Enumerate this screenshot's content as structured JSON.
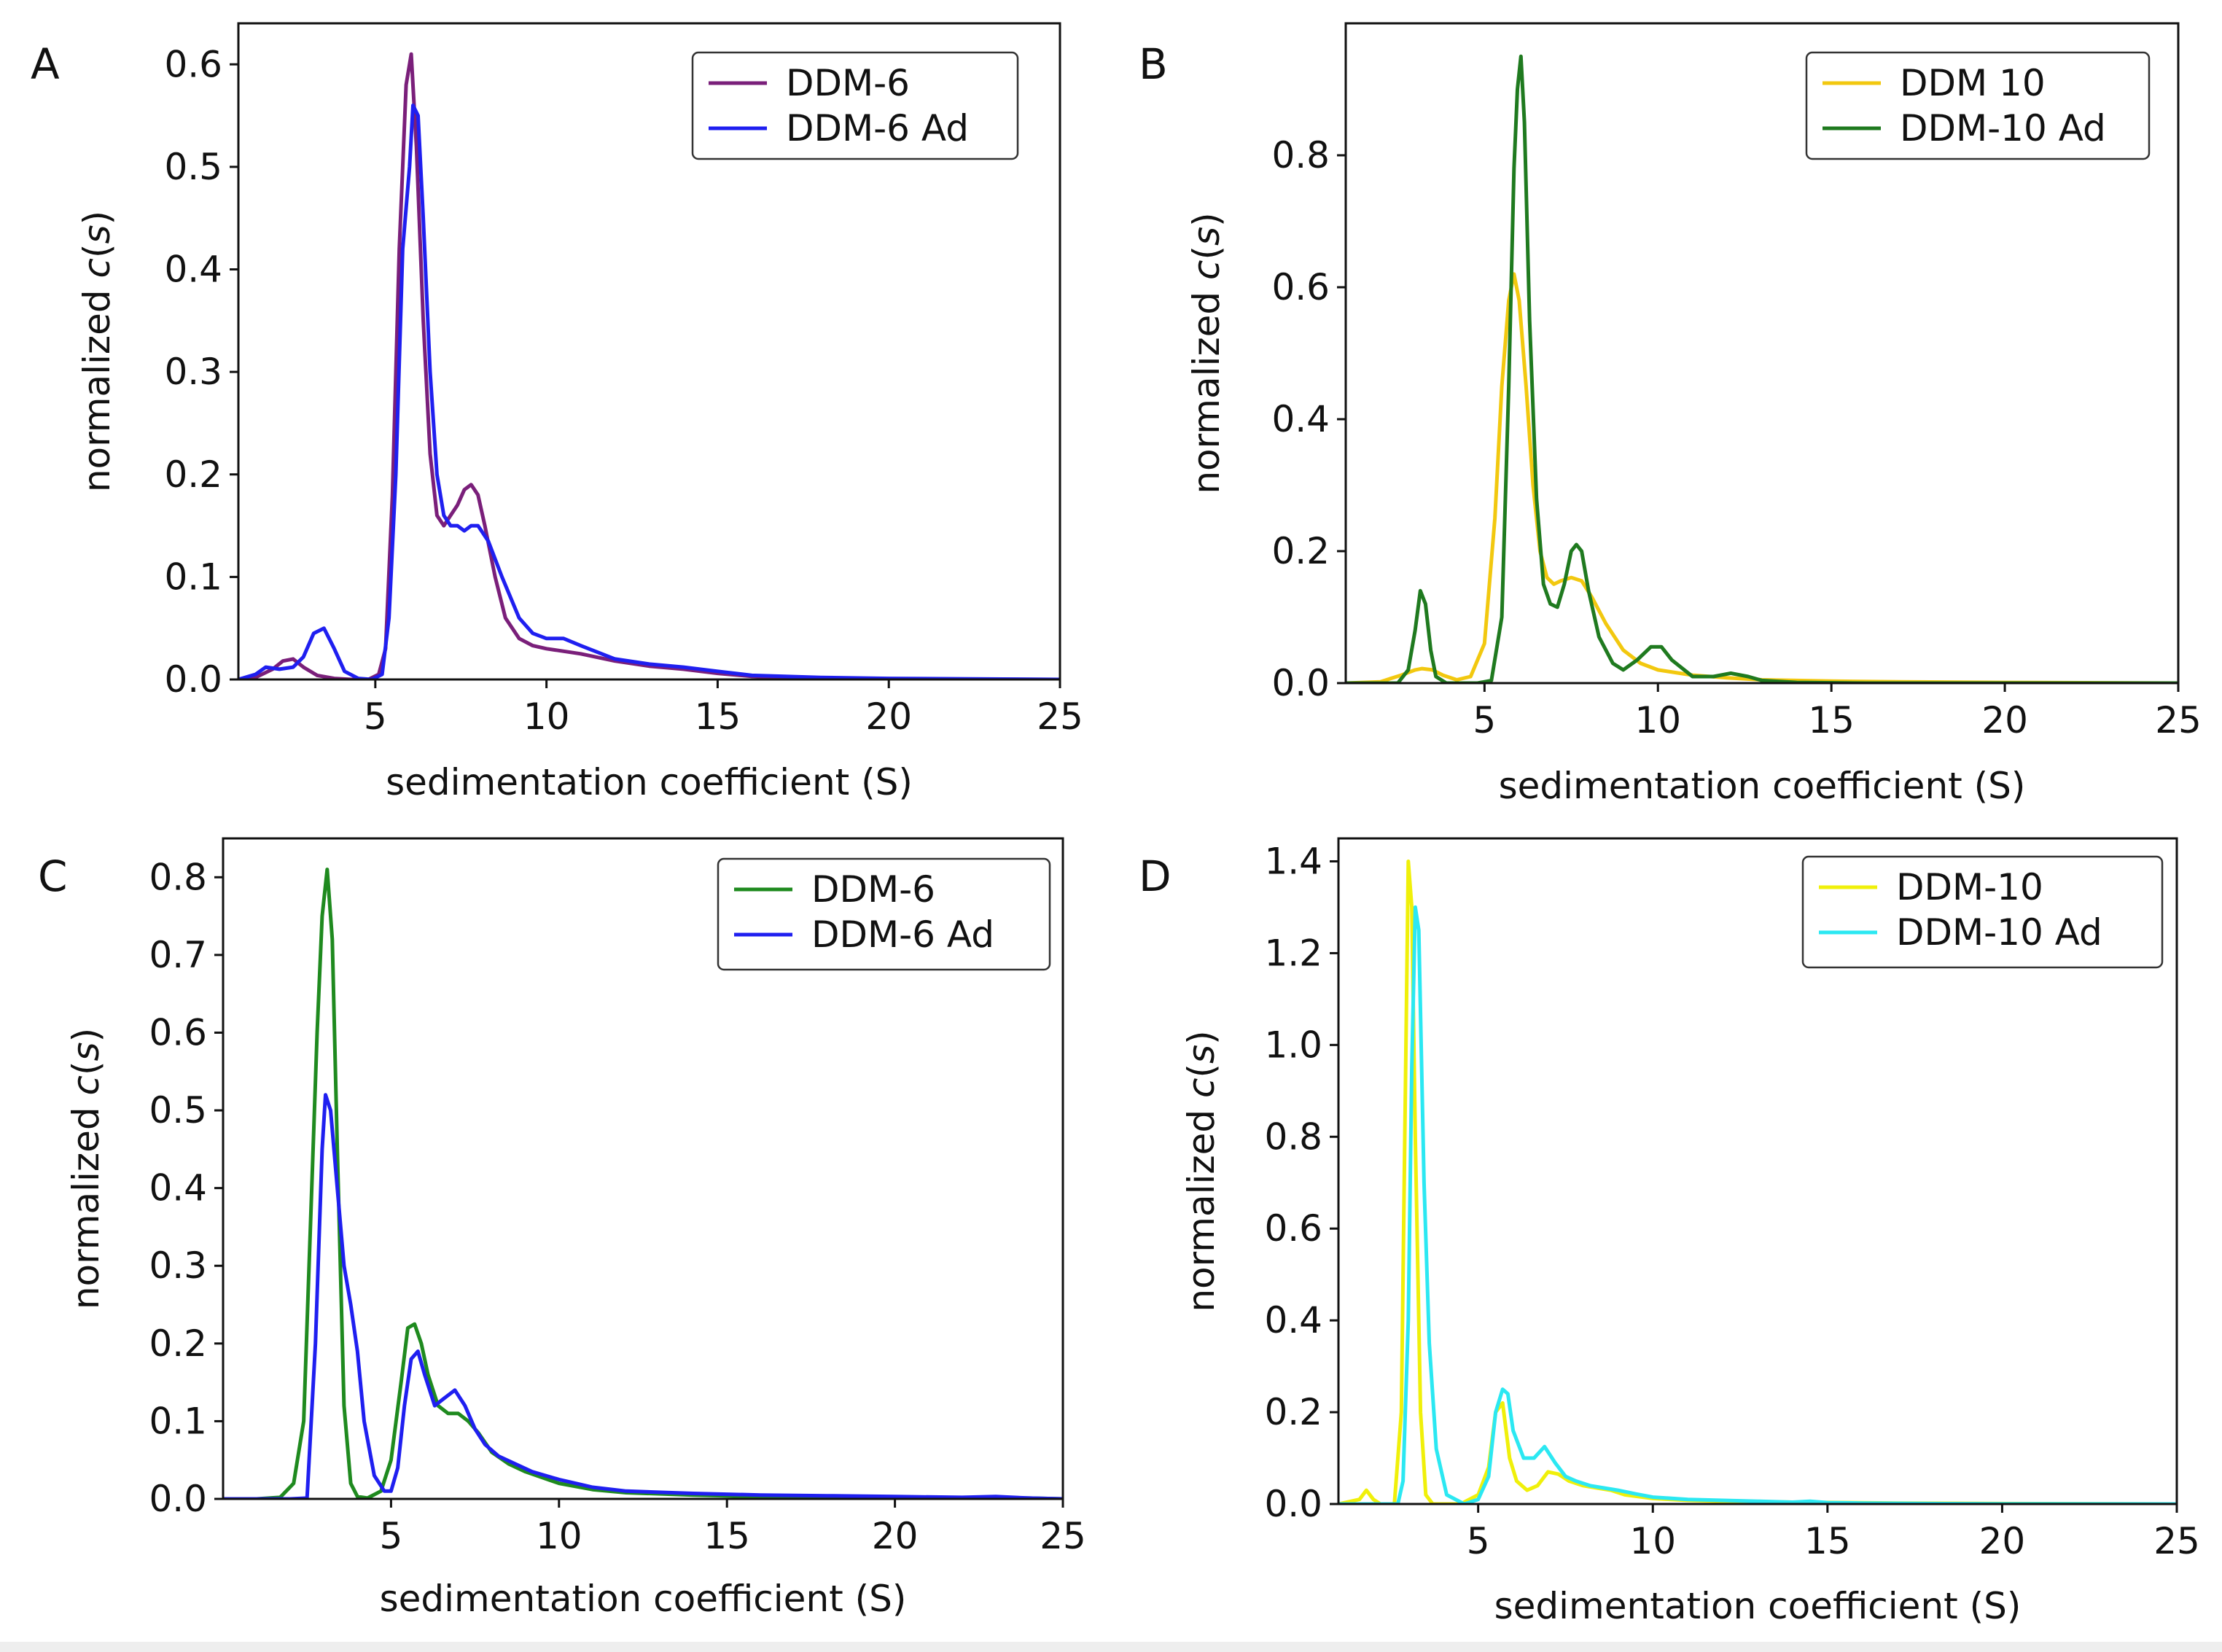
{
  "chart_data": [
    {
      "panel": "A",
      "type": "line",
      "xlabel": "sedimentation coefficient (S)",
      "ylabel_prefix": "normalized ",
      "ylabel_italic": "c",
      "ylabel_paren_open": "(",
      "ylabel_italic2": "s",
      "ylabel_paren_close": ")",
      "xlim": [
        1,
        25
      ],
      "ylim": [
        0,
        0.64
      ],
      "xticks": [
        5,
        10,
        15,
        20,
        25
      ],
      "yticks": [
        0.0,
        0.1,
        0.2,
        0.3,
        0.4,
        0.5,
        0.6
      ],
      "ytick_labels": [
        "0.0",
        "0.1",
        "0.2",
        "0.3",
        "0.4",
        "0.5",
        "0.6"
      ],
      "legend_position": "top-right",
      "series": [
        {
          "name": "DDM-6",
          "color": "#7a1f7a",
          "x": [
            1.0,
            1.5,
            2.0,
            2.3,
            2.6,
            2.9,
            3.3,
            3.8,
            4.3,
            4.8,
            5.1,
            5.3,
            5.5,
            5.7,
            5.9,
            6.05,
            6.2,
            6.4,
            6.6,
            6.8,
            7.0,
            7.2,
            7.4,
            7.6,
            7.8,
            8.0,
            8.2,
            8.5,
            8.8,
            9.2,
            9.6,
            10.0,
            11.0,
            12.0,
            13.0,
            14.0,
            15.0,
            16.0,
            18.0,
            20.0,
            22.0,
            25.0
          ],
          "y": [
            0,
            0.002,
            0.01,
            0.018,
            0.02,
            0.012,
            0.004,
            0.001,
            0,
            0,
            0.005,
            0.03,
            0.18,
            0.42,
            0.58,
            0.61,
            0.52,
            0.35,
            0.22,
            0.16,
            0.15,
            0.16,
            0.17,
            0.185,
            0.19,
            0.18,
            0.15,
            0.1,
            0.06,
            0.04,
            0.033,
            0.03,
            0.025,
            0.018,
            0.013,
            0.01,
            0.006,
            0.003,
            0.001,
            0.0005,
            0.0002,
            0
          ]
        },
        {
          "name": "DDM-6 Ad",
          "color": "#1f1ff0",
          "x": [
            1.0,
            1.5,
            1.8,
            2.2,
            2.6,
            2.9,
            3.2,
            3.5,
            3.8,
            4.1,
            4.5,
            4.9,
            5.2,
            5.4,
            5.6,
            5.8,
            6.0,
            6.1,
            6.25,
            6.4,
            6.6,
            6.8,
            7.0,
            7.2,
            7.4,
            7.6,
            7.8,
            8.0,
            8.3,
            8.7,
            9.2,
            9.6,
            10.0,
            10.5,
            11.0,
            12.0,
            13.0,
            14.0,
            15.0,
            16.0,
            18.0,
            20.0,
            25.0
          ],
          "y": [
            0,
            0.005,
            0.012,
            0.01,
            0.012,
            0.022,
            0.045,
            0.05,
            0.03,
            0.008,
            0.001,
            0,
            0.005,
            0.06,
            0.2,
            0.42,
            0.5,
            0.56,
            0.55,
            0.45,
            0.3,
            0.2,
            0.16,
            0.15,
            0.15,
            0.145,
            0.15,
            0.15,
            0.135,
            0.1,
            0.06,
            0.045,
            0.04,
            0.04,
            0.033,
            0.02,
            0.015,
            0.012,
            0.008,
            0.004,
            0.002,
            0.001,
            0
          ]
        }
      ]
    },
    {
      "panel": "B",
      "type": "line",
      "xlabel": "sedimentation coefficient (S)",
      "ylabel_prefix": "normalized ",
      "ylabel_italic": "c",
      "ylabel_paren_open": "(",
      "ylabel_italic2": "s",
      "ylabel_paren_close": ")",
      "xlim": [
        1,
        25
      ],
      "ylim": [
        0,
        1.0
      ],
      "xticks": [
        5,
        10,
        15,
        20,
        25
      ],
      "yticks": [
        0.0,
        0.2,
        0.4,
        0.6,
        0.8
      ],
      "ytick_labels": [
        "0.0",
        "0.2",
        "0.4",
        "0.6",
        "0.8"
      ],
      "legend_position": "top-right",
      "series": [
        {
          "name": "DDM 10",
          "color": "#f2c80f",
          "x": [
            1.0,
            2.0,
            2.6,
            3.0,
            3.2,
            3.5,
            3.8,
            4.2,
            4.6,
            5.0,
            5.3,
            5.5,
            5.7,
            5.85,
            6.0,
            6.2,
            6.4,
            6.6,
            6.8,
            7.0,
            7.2,
            7.5,
            7.8,
            8.1,
            8.5,
            9.0,
            9.5,
            10.0,
            11.0,
            12.0,
            13.0,
            15.0,
            17.0,
            20.0,
            25.0
          ],
          "y": [
            0,
            0.002,
            0.012,
            0.02,
            0.022,
            0.02,
            0.012,
            0.005,
            0.01,
            0.06,
            0.25,
            0.45,
            0.58,
            0.62,
            0.58,
            0.45,
            0.3,
            0.2,
            0.16,
            0.15,
            0.155,
            0.16,
            0.155,
            0.13,
            0.09,
            0.05,
            0.03,
            0.02,
            0.012,
            0.008,
            0.005,
            0.003,
            0.002,
            0.001,
            0
          ]
        },
        {
          "name": "DDM-10 Ad",
          "color": "#1f7a1f",
          "x": [
            1.0,
            2.5,
            2.8,
            3.0,
            3.15,
            3.3,
            3.45,
            3.6,
            3.9,
            4.3,
            4.8,
            5.2,
            5.5,
            5.7,
            5.85,
            5.95,
            6.05,
            6.15,
            6.3,
            6.5,
            6.7,
            6.9,
            7.1,
            7.3,
            7.5,
            7.65,
            7.8,
            8.0,
            8.3,
            8.7,
            9.0,
            9.4,
            9.8,
            10.1,
            10.4,
            11.0,
            11.6,
            12.1,
            12.6,
            13.0,
            14.0,
            16.0,
            20.0,
            25.0
          ],
          "y": [
            0,
            0,
            0.02,
            0.08,
            0.14,
            0.12,
            0.05,
            0.01,
            0,
            0,
            0,
            0.004,
            0.1,
            0.45,
            0.78,
            0.9,
            0.95,
            0.85,
            0.55,
            0.28,
            0.15,
            0.12,
            0.115,
            0.15,
            0.2,
            0.21,
            0.2,
            0.14,
            0.07,
            0.03,
            0.02,
            0.035,
            0.055,
            0.055,
            0.035,
            0.01,
            0.01,
            0.015,
            0.01,
            0.004,
            0.001,
            0,
            0,
            0
          ]
        }
      ]
    },
    {
      "panel": "C",
      "type": "line",
      "xlabel": "sedimentation coefficient (S)",
      "ylabel_prefix": "normalized ",
      "ylabel_italic": "c",
      "ylabel_paren_open": "(",
      "ylabel_italic2": "s",
      "ylabel_paren_close": ")",
      "xlim": [
        0,
        25
      ],
      "ylim": [
        0,
        0.85
      ],
      "xticks": [
        5,
        10,
        15,
        20,
        25
      ],
      "yticks": [
        0.0,
        0.1,
        0.2,
        0.3,
        0.4,
        0.5,
        0.6,
        0.7,
        0.8
      ],
      "ytick_labels": [
        "0.0",
        "0.1",
        "0.2",
        "0.3",
        "0.4",
        "0.5",
        "0.6",
        "0.7",
        "0.8"
      ],
      "legend_position": "top-right",
      "series": [
        {
          "name": "DDM-6",
          "color": "#1f8a1f",
          "x": [
            0.0,
            1.0,
            1.7,
            2.1,
            2.4,
            2.6,
            2.8,
            2.95,
            3.1,
            3.25,
            3.4,
            3.6,
            3.8,
            4.0,
            4.3,
            4.7,
            5.0,
            5.3,
            5.5,
            5.7,
            5.9,
            6.1,
            6.4,
            6.7,
            7.0,
            7.3,
            7.6,
            8.0,
            8.5,
            9.0,
            10.0,
            11.0,
            12.0,
            14.0,
            16.0,
            18.0,
            20.0,
            22.0,
            24.0,
            25.0
          ],
          "y": [
            0,
            0,
            0.002,
            0.02,
            0.1,
            0.35,
            0.6,
            0.75,
            0.81,
            0.72,
            0.45,
            0.12,
            0.02,
            0.003,
            0.001,
            0.01,
            0.05,
            0.15,
            0.22,
            0.225,
            0.2,
            0.16,
            0.12,
            0.11,
            0.11,
            0.1,
            0.085,
            0.06,
            0.045,
            0.035,
            0.02,
            0.012,
            0.008,
            0.005,
            0.003,
            0.002,
            0.002,
            0.001,
            0.001,
            0
          ]
        },
        {
          "name": "DDM-6 Ad",
          "color": "#1f1ff0",
          "x": [
            0.0,
            2.0,
            2.5,
            2.75,
            2.95,
            3.05,
            3.2,
            3.4,
            3.6,
            3.8,
            4.0,
            4.2,
            4.5,
            4.8,
            5.0,
            5.2,
            5.4,
            5.6,
            5.8,
            6.0,
            6.3,
            6.6,
            6.9,
            7.2,
            7.5,
            7.8,
            8.2,
            8.7,
            9.2,
            10.0,
            11.0,
            12.0,
            14.0,
            16.0,
            18.0,
            20.0,
            22.0,
            23.0,
            24.0,
            25.0
          ],
          "y": [
            0,
            0,
            0.001,
            0.2,
            0.45,
            0.52,
            0.5,
            0.4,
            0.3,
            0.25,
            0.19,
            0.1,
            0.03,
            0.01,
            0.01,
            0.04,
            0.12,
            0.18,
            0.19,
            0.16,
            0.12,
            0.13,
            0.14,
            0.12,
            0.09,
            0.07,
            0.055,
            0.045,
            0.035,
            0.025,
            0.015,
            0.01,
            0.007,
            0.005,
            0.004,
            0.003,
            0.002,
            0.003,
            0.001,
            0
          ]
        }
      ]
    },
    {
      "panel": "D",
      "type": "line",
      "xlabel": "sedimentation coefficient (S)",
      "ylabel_prefix": "normalized ",
      "ylabel_italic": "c",
      "ylabel_paren_open": "(",
      "ylabel_italic2": "s",
      "ylabel_paren_close": ")",
      "xlim": [
        1,
        25
      ],
      "ylim": [
        0,
        1.45
      ],
      "xticks": [
        5,
        10,
        15,
        20,
        25
      ],
      "yticks": [
        0.0,
        0.2,
        0.4,
        0.6,
        0.8,
        1.0,
        1.2,
        1.4
      ],
      "ytick_labels": [
        "0.0",
        "0.2",
        "0.4",
        "0.6",
        "0.8",
        "1.0",
        "1.2",
        "1.4"
      ],
      "legend_position": "top-right",
      "series": [
        {
          "name": "DDM-10",
          "color": "#f0f00a",
          "x": [
            1.0,
            1.6,
            1.8,
            2.0,
            2.2,
            2.6,
            2.8,
            2.9,
            3.0,
            3.1,
            3.2,
            3.35,
            3.5,
            3.7,
            4.0,
            4.5,
            5.0,
            5.3,
            5.5,
            5.7,
            5.9,
            6.1,
            6.4,
            6.7,
            7.0,
            7.3,
            7.6,
            8.0,
            8.4,
            8.8,
            9.2,
            10.0,
            11.0,
            12.0,
            14.0,
            17.0,
            20.0,
            25.0
          ],
          "y": [
            0,
            0.01,
            0.03,
            0.01,
            0,
            0,
            0.2,
            0.8,
            1.4,
            1.3,
            0.8,
            0.2,
            0.02,
            0,
            0,
            0,
            0.02,
            0.08,
            0.2,
            0.22,
            0.1,
            0.05,
            0.03,
            0.04,
            0.07,
            0.065,
            0.05,
            0.04,
            0.035,
            0.03,
            0.02,
            0.012,
            0.008,
            0.006,
            0.004,
            0.002,
            0.001,
            0
          ]
        },
        {
          "name": "DDM-10 Ad",
          "color": "#2be8f2",
          "x": [
            1.0,
            2.7,
            2.85,
            3.0,
            3.1,
            3.2,
            3.3,
            3.45,
            3.6,
            3.8,
            4.1,
            4.6,
            5.0,
            5.3,
            5.5,
            5.7,
            5.85,
            6.0,
            6.3,
            6.6,
            6.9,
            7.2,
            7.5,
            7.8,
            8.2,
            8.6,
            9.0,
            9.5,
            10.0,
            11.0,
            12.0,
            13.0,
            14.0,
            14.5,
            15.0,
            16.0,
            18.0,
            20.0,
            25.0
          ],
          "y": [
            0,
            0,
            0.05,
            0.4,
            0.95,
            1.3,
            1.25,
            0.7,
            0.35,
            0.12,
            0.02,
            0,
            0.01,
            0.06,
            0.2,
            0.25,
            0.24,
            0.16,
            0.1,
            0.1,
            0.125,
            0.09,
            0.06,
            0.05,
            0.04,
            0.035,
            0.03,
            0.022,
            0.015,
            0.01,
            0.008,
            0.006,
            0.004,
            0.006,
            0.003,
            0.002,
            0.001,
            0.0005,
            0
          ]
        }
      ]
    }
  ]
}
